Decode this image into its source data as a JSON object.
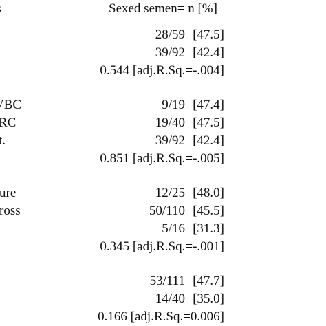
{
  "header": {
    "left_label": "es",
    "right_label": "Sexed semen= n  [%]"
  },
  "groups": [
    {
      "rows": [
        {
          "label": "",
          "n": "28/59",
          "pct": "[47.5]"
        },
        {
          "label": "",
          "n": "39/92",
          "pct": "[42.4]"
        }
      ],
      "stat": "0.544 [adj.R.Sq.=-.004]"
    },
    {
      "rows": [
        {
          "label": "VBC",
          "n": "9/19",
          "pct": "[47.4]"
        },
        {
          "label": "RC",
          "n": "19/40",
          "pct": "[47.5]"
        },
        {
          "label": "t.",
          "n": "39/92",
          "pct": "[42.4]"
        }
      ],
      "stat": "0.851 [adj.R.Sq.=-.005]"
    },
    {
      "rows": [
        {
          "label": "ure",
          "n": "12/25",
          "pct": "[48.0]"
        },
        {
          "label": "ross",
          "n": "50/110",
          "pct": "[45.5]"
        },
        {
          "label": "",
          "n": "5/16",
          "pct": "[31.3]"
        }
      ],
      "stat": "0.345 [adj.R.Sq.=-.001]"
    },
    {
      "rows": [
        {
          "label": "",
          "n": "53/111",
          "pct": "[47.7]"
        },
        {
          "label": "",
          "n": "14/40",
          "pct": "[35.0]"
        }
      ],
      "stat": "0.166 [adj.R.Sq.=0.006]"
    }
  ]
}
